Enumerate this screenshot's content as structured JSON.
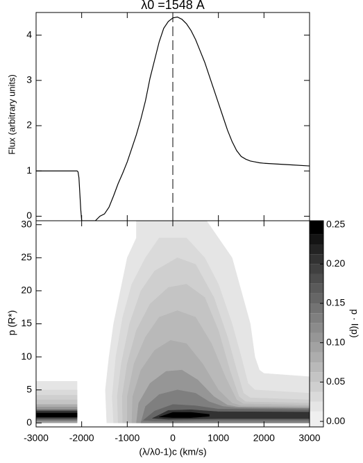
{
  "chart_data": [
    {
      "type": "line",
      "title": "λ0 =1548 A",
      "ylabel": "Flux (arbitrary units)",
      "x": [
        -3000,
        -2500,
        -2100,
        -2080,
        -2060,
        -2040,
        -2020,
        -2000,
        -1700,
        -1600,
        -1500,
        -1400,
        -1300,
        -1200,
        -1100,
        -1000,
        -900,
        -800,
        -700,
        -600,
        -500,
        -400,
        -300,
        -200,
        -100,
        0,
        100,
        200,
        300,
        400,
        500,
        600,
        700,
        800,
        900,
        1000,
        1100,
        1200,
        1300,
        1400,
        1500,
        1600,
        1700,
        1800,
        1900,
        2000,
        2500,
        3000
      ],
      "values": [
        1,
        1,
        1,
        0.98,
        0.85,
        0.5,
        0.15,
        -0.1,
        -0.1,
        0,
        0.05,
        0.2,
        0.45,
        0.72,
        0.95,
        1.2,
        1.5,
        1.8,
        2.15,
        2.55,
        3.05,
        3.45,
        3.85,
        4.15,
        4.3,
        4.38,
        4.4,
        4.35,
        4.25,
        4.1,
        3.9,
        3.65,
        3.4,
        3.1,
        2.8,
        2.5,
        2.2,
        1.9,
        1.65,
        1.45,
        1.32,
        1.26,
        1.22,
        1.2,
        1.18,
        1.17,
        1.14,
        1.11
      ],
      "color": "#000000",
      "xlim": [
        -3000,
        3000
      ],
      "ylim": [
        -0.1,
        4.5
      ],
      "xticks": [
        -3000,
        -2000,
        -1000,
        0,
        1000,
        2000,
        3000
      ],
      "show_xtick_labels": false,
      "yticks": [
        0,
        1,
        2,
        3,
        4
      ],
      "vline": {
        "x": 0,
        "style": "dashed"
      }
    },
    {
      "type": "contour",
      "xlabel": "(λ/λ0-1)c (km/s)",
      "ylabel": "p (R*)",
      "colorbar_label": "p · I(p)",
      "xlim": [
        -3000,
        3000
      ],
      "ylim": [
        -0.6,
        30.6
      ],
      "xticks": [
        -3000,
        -2000,
        -1000,
        0,
        1000,
        2000,
        3000
      ],
      "yticks": [
        0,
        5,
        10,
        15,
        20,
        25,
        30
      ],
      "zlim": [
        -0.007,
        0.255
      ],
      "zticks": [
        {
          "value": 0,
          "label": "0.00"
        },
        {
          "value": 0.05,
          "label": "0.05"
        },
        {
          "value": 0.1,
          "label": "0.10"
        },
        {
          "value": 0.15,
          "label": "0.15"
        },
        {
          "value": 0.2,
          "label": "0.20"
        },
        {
          "value": 0.25,
          "label": "0.25"
        }
      ],
      "levels": [
        0,
        0.0125,
        0.025,
        0.0375,
        0.05,
        0.0625,
        0.075,
        0.0875,
        0.1,
        0.1125,
        0.125,
        0.1375,
        0.15,
        0.1625,
        0.175,
        0.1875,
        0.2,
        0.2125,
        0.225,
        0.2375,
        0.25
      ],
      "colormap": "gray_r",
      "contours": [
        {
          "level": 0.0125,
          "x": [
            -3000,
            -2100,
            -2100,
            -3000
          ],
          "y": [
            0,
            0,
            6.3,
            6.3
          ]
        },
        {
          "level": 0.025,
          "x": [
            -3000,
            -2100,
            -2100,
            -3000
          ],
          "y": [
            0,
            0,
            5,
            5
          ]
        },
        {
          "level": 0.0375,
          "x": [
            -3000,
            -2100,
            -2100,
            -3000
          ],
          "y": [
            0,
            0,
            4.2,
            4.2
          ]
        },
        {
          "level": 0.05,
          "x": [
            -3000,
            -2100,
            -2100,
            -3000
          ],
          "y": [
            0,
            0,
            3.5,
            3.5
          ]
        },
        {
          "level": 0.075,
          "x": [
            -3000,
            -2100,
            -2100,
            -3000
          ],
          "y": [
            0,
            0,
            2.8,
            2.8
          ]
        },
        {
          "level": 0.1,
          "x": [
            -3000,
            -2100,
            -2100,
            -3000
          ],
          "y": [
            0.1,
            0.1,
            2.4,
            2.4
          ]
        },
        {
          "level": 0.15,
          "x": [
            -3000,
            -2100,
            -2100,
            -3000
          ],
          "y": [
            0.4,
            0.4,
            2,
            2
          ]
        },
        {
          "level": 0.2,
          "x": [
            -3000,
            -2100,
            -2100,
            -3000
          ],
          "y": [
            0.7,
            0.7,
            1.8,
            1.8
          ]
        },
        {
          "level": 0.2375,
          "x": [
            -3000,
            -2100,
            -2100,
            -3000
          ],
          "y": [
            0.9,
            0.9,
            1.5,
            1.5
          ]
        },
        {
          "level": 0.0125,
          "x": [
            -1450,
            -1480,
            -1400,
            -1300,
            -1150,
            -1000,
            -800,
            -800,
            700,
            800,
            1100,
            1300,
            1500,
            1700,
            1800,
            1900,
            2000,
            3000,
            3000
          ],
          "y": [
            0,
            5,
            10,
            15,
            20,
            25,
            28,
            31,
            31,
            30,
            27,
            25,
            20,
            15,
            10,
            8,
            7.5,
            7,
            0
          ]
        },
        {
          "level": 0.025,
          "x": [
            -1300,
            -1330,
            -1250,
            -1100,
            -900,
            -600,
            -300,
            300,
            700,
            1000,
            1300,
            1500,
            1650,
            1800,
            3000,
            3000
          ],
          "y": [
            0,
            4,
            10,
            16,
            21,
            25,
            28,
            28,
            25,
            21,
            15,
            10,
            6,
            5,
            4.5,
            0
          ]
        },
        {
          "level": 0.0375,
          "x": [
            -1200,
            -1220,
            -1130,
            -950,
            -700,
            -400,
            100,
            500,
            900,
            1200,
            1400,
            1550,
            1700,
            3000,
            3000
          ],
          "y": [
            0,
            4,
            9,
            15,
            20,
            23,
            25,
            24,
            19,
            13,
            8,
            4.5,
            3.8,
            3.5,
            0
          ]
        },
        {
          "level": 0.05,
          "x": [
            -1100,
            -1110,
            -1000,
            -800,
            -500,
            -100,
            300,
            700,
            1000,
            1250,
            1450,
            1600,
            3000,
            3000
          ],
          "y": [
            0,
            4,
            9,
            14,
            18,
            20.5,
            21,
            19,
            14,
            8,
            4,
            3.2,
            3,
            0
          ]
        },
        {
          "level": 0.0625,
          "x": [
            -1000,
            -1000,
            -850,
            -600,
            -300,
            100,
            500,
            850,
            1150,
            1400,
            1550,
            3000,
            3000
          ],
          "y": [
            0,
            4,
            9,
            13,
            16,
            17,
            16,
            12,
            7,
            3.5,
            2.9,
            2.7,
            0
          ]
        },
        {
          "level": 0.075,
          "x": [
            -900,
            -880,
            -700,
            -400,
            -50,
            300,
            650,
            1000,
            1300,
            1500,
            3000,
            3000
          ],
          "y": [
            0,
            4,
            8,
            11,
            12.5,
            12,
            9,
            5,
            3,
            2.6,
            2.5,
            0
          ]
        },
        {
          "level": 0.1,
          "x": [
            -800,
            -750,
            -500,
            -150,
            200,
            550,
            900,
            1200,
            1450,
            3000,
            3000
          ],
          "y": [
            0,
            3,
            6,
            7.8,
            8,
            6.5,
            4,
            2.7,
            2.4,
            2.3,
            0
          ]
        },
        {
          "level": 0.125,
          "x": [
            -700,
            -600,
            -300,
            100,
            500,
            800,
            1100,
            1400,
            3000,
            3000
          ],
          "y": [
            0,
            2.5,
            4.3,
            5,
            4.5,
            3.2,
            2.5,
            2.3,
            2.2,
            0
          ]
        },
        {
          "level": 0.15,
          "x": [
            -650,
            -400,
            0,
            500,
            1000,
            3000,
            3000,
            1000,
            500,
            0,
            -400
          ],
          "y": [
            0.4,
            1.8,
            2.8,
            2.6,
            2.1,
            2,
            0.4,
            0.4,
            0.35,
            0.3,
            0.3
          ]
        },
        {
          "level": 0.2,
          "x": [
            -450,
            -100,
            400,
            1000,
            3000,
            3000,
            1000,
            400,
            -100
          ],
          "y": [
            0.7,
            1.9,
            2,
            1.7,
            1.65,
            0.65,
            0.65,
            0.6,
            0.55
          ]
        },
        {
          "level": 0.2375,
          "x": [
            -300,
            0,
            400,
            800,
            800,
            400,
            0
          ],
          "y": [
            0.9,
            1.6,
            1.6,
            1.3,
            1,
            0.8,
            0.8
          ]
        }
      ]
    }
  ]
}
